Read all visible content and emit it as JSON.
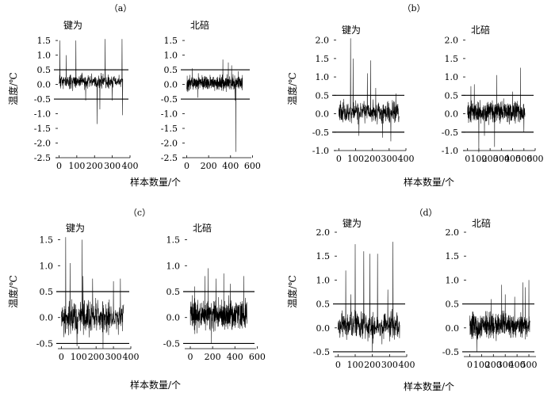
{
  "panels": [
    {
      "label": "（a）",
      "ylabel": "温度/℃",
      "xlabel": "样本数量/个"
    },
    {
      "label": "（b）",
      "ylabel": "温度/℃",
      "xlabel": "样本数量/个"
    },
    {
      "label": "（c）",
      "ylabel": "温度/℃",
      "xlabel": "样本数量/个"
    },
    {
      "label": "（d）",
      "ylabel": "温度/℃",
      "xlabel": "样本数量/个"
    }
  ],
  "chart_data": [
    {
      "panel": "（a）",
      "title": "键为",
      "type": "line",
      "xlim": [
        -20,
        400
      ],
      "ylim": [
        -2.5,
        1.8
      ],
      "xticks": [
        "0",
        "100",
        "200",
        "300",
        "400"
      ],
      "xtick_values": [
        0,
        100,
        200,
        300,
        400
      ],
      "yticks": [
        "-2.5",
        "-2.0",
        "-1.5",
        "-1.0",
        "-0.5",
        "0.0",
        "0.5",
        "1.0",
        "1.5"
      ],
      "ytick_values": [
        -2.5,
        -2.0,
        -1.5,
        -1.0,
        -0.5,
        0.0,
        0.5,
        1.0,
        1.5
      ],
      "thresholds": [
        0.5,
        -0.5
      ],
      "n": 360,
      "base": 0.1,
      "amp": 0.17,
      "seed": 11,
      "spikes": [
        [
          5,
          1.5
        ],
        [
          40,
          1.0
        ],
        [
          95,
          1.5
        ],
        [
          150,
          -0.55
        ],
        [
          215,
          -1.35
        ],
        [
          230,
          -0.85
        ],
        [
          260,
          1.55
        ],
        [
          300,
          -0.55
        ],
        [
          355,
          1.55
        ],
        [
          358,
          -1.05
        ]
      ]
    },
    {
      "panel": "（a）",
      "title": "北碚",
      "type": "line",
      "xlim": [
        -40,
        590
      ],
      "ylim": [
        -2.5,
        1.8
      ],
      "xticks": [
        "0",
        "200",
        "400",
        "600"
      ],
      "xtick_values": [
        0,
        200,
        400,
        600
      ],
      "yticks": [
        "-2.5",
        "-2.0",
        "-1.5",
        "-1.0",
        "-0.5",
        "0.0",
        "0.5",
        "1.0",
        "1.5"
      ],
      "ytick_values": [
        -2.5,
        -2.0,
        -1.5,
        -1.0,
        -0.5,
        0.0,
        0.5,
        1.0,
        1.5
      ],
      "thresholds": [
        0.5,
        -0.5
      ],
      "n": 510,
      "base": 0.05,
      "amp": 0.17,
      "seed": 22,
      "spikes": [
        [
          50,
          0.55
        ],
        [
          100,
          -0.45
        ],
        [
          330,
          0.85
        ],
        [
          380,
          0.75
        ],
        [
          410,
          0.65
        ],
        [
          440,
          -0.55
        ],
        [
          448,
          -2.3
        ],
        [
          470,
          0.45
        ]
      ]
    },
    {
      "panel": "（b）",
      "title": "键为",
      "type": "line",
      "xlim": [
        -30,
        400
      ],
      "ylim": [
        -1.0,
        2.1
      ],
      "xticks": [
        "0",
        "100",
        "200",
        "300",
        "400"
      ],
      "xtick_values": [
        0,
        100,
        200,
        300,
        400
      ],
      "yticks": [
        "-1.0",
        "-0.5",
        "0.0",
        "0.5",
        "1.0",
        "1.5",
        "2.0"
      ],
      "ytick_values": [
        -1.0,
        -0.5,
        0.0,
        0.5,
        1.0,
        1.5,
        2.0
      ],
      "thresholds": [
        0.5,
        -0.5
      ],
      "n": 360,
      "base": 0.05,
      "amp": 0.2,
      "seed": 33,
      "spikes": [
        [
          70,
          2.05
        ],
        [
          85,
          1.5
        ],
        [
          120,
          -0.6
        ],
        [
          170,
          1.1
        ],
        [
          190,
          1.45
        ],
        [
          220,
          0.7
        ],
        [
          260,
          -0.65
        ],
        [
          310,
          -0.75
        ],
        [
          340,
          0.55
        ]
      ]
    },
    {
      "panel": "（b）",
      "title": "北碚",
      "type": "line",
      "xlim": [
        -40,
        600
      ],
      "ylim": [
        -1.0,
        2.1
      ],
      "xticks": [
        "0",
        "100",
        "200",
        "300",
        "400",
        "500",
        "600"
      ],
      "xtick_values": [
        0,
        100,
        200,
        300,
        400,
        500,
        600
      ],
      "yticks": [
        "-1.0",
        "-0.5",
        "0.0",
        "0.5",
        "1.0",
        "1.5",
        "2.0"
      ],
      "ytick_values": [
        -1.0,
        -0.5,
        0.0,
        0.5,
        1.0,
        1.5,
        2.0
      ],
      "thresholds": [
        0.5,
        -0.5
      ],
      "n": 510,
      "base": 0.05,
      "amp": 0.2,
      "seed": 44,
      "spikes": [
        [
          30,
          0.75
        ],
        [
          60,
          0.8
        ],
        [
          100,
          -1.05
        ],
        [
          150,
          -0.6
        ],
        [
          240,
          -0.9
        ],
        [
          260,
          1.05
        ],
        [
          400,
          0.6
        ],
        [
          470,
          1.25
        ],
        [
          500,
          -0.5
        ]
      ]
    },
    {
      "panel": "（c）",
      "title": "键为",
      "type": "line",
      "xlim": [
        -20,
        400
      ],
      "ylim": [
        -0.6,
        1.6
      ],
      "xticks": [
        "0",
        "100",
        "200",
        "300",
        "400"
      ],
      "xtick_values": [
        0,
        100,
        200,
        300,
        400
      ],
      "yticks": [
        "-0.5",
        "0.0",
        "0.5",
        "1.0",
        "1.5"
      ],
      "ytick_values": [
        -0.5,
        0.0,
        0.5,
        1.0,
        1.5
      ],
      "thresholds": [
        0.5,
        -0.5
      ],
      "n": 360,
      "base": 0.0,
      "amp": 0.22,
      "seed": 55,
      "spikes": [
        [
          25,
          1.55
        ],
        [
          50,
          1.05
        ],
        [
          90,
          -0.55
        ],
        [
          120,
          1.5
        ],
        [
          125,
          0.8
        ],
        [
          180,
          0.75
        ],
        [
          240,
          -0.6
        ],
        [
          300,
          0.7
        ],
        [
          340,
          0.75
        ]
      ]
    },
    {
      "panel": "（c）",
      "title": "北碚",
      "type": "line",
      "xlim": [
        -50,
        590
      ],
      "ylim": [
        -0.6,
        1.6
      ],
      "xticks": [
        "0",
        "200",
        "400",
        "600"
      ],
      "xtick_values": [
        0,
        200,
        400,
        600
      ],
      "yticks": [
        "-0.5",
        "0.0",
        "0.5",
        "1.0",
        "1.5"
      ],
      "ytick_values": [
        -0.5,
        0.0,
        0.5,
        1.0,
        1.5
      ],
      "thresholds": [
        0.5,
        -0.5
      ],
      "n": 510,
      "base": 0.05,
      "amp": 0.2,
      "seed": 66,
      "spikes": [
        [
          40,
          0.6
        ],
        [
          130,
          0.8
        ],
        [
          160,
          0.95
        ],
        [
          190,
          -0.5
        ],
        [
          230,
          0.75
        ],
        [
          300,
          0.85
        ],
        [
          360,
          0.65
        ],
        [
          480,
          0.8
        ]
      ]
    },
    {
      "panel": "（d）",
      "title": "键为",
      "type": "line",
      "xlim": [
        -20,
        400
      ],
      "ylim": [
        -0.6,
        2.05
      ],
      "xticks": [
        "0",
        "100",
        "200",
        "300",
        "400"
      ],
      "xtick_values": [
        0,
        100,
        200,
        300,
        400
      ],
      "yticks": [
        "-0.5",
        "0.0",
        "0.5",
        "1.0",
        "1.5",
        "2.0"
      ],
      "ytick_values": [
        -0.5,
        0.0,
        0.5,
        1.0,
        1.5,
        2.0
      ],
      "thresholds": [
        0.5,
        -0.5
      ],
      "n": 360,
      "base": 0.05,
      "amp": 0.2,
      "seed": 77,
      "spikes": [
        [
          45,
          1.2
        ],
        [
          75,
          0.7
        ],
        [
          100,
          1.75
        ],
        [
          150,
          1.6
        ],
        [
          185,
          1.55
        ],
        [
          200,
          -0.5
        ],
        [
          230,
          1.55
        ],
        [
          290,
          0.8
        ],
        [
          320,
          1.8
        ]
      ]
    },
    {
      "panel": "（d）",
      "title": "北碚",
      "type": "line",
      "xlim": [
        -50,
        560
      ],
      "ylim": [
        -0.6,
        2.05
      ],
      "xticks": [
        "0",
        "100",
        "200",
        "300",
        "400",
        "500"
      ],
      "xtick_values": [
        0,
        100,
        200,
        300,
        400,
        500
      ],
      "yticks": [
        "-0.5",
        "0.0",
        "0.5",
        "1.0",
        "1.5",
        "2.0"
      ],
      "ytick_values": [
        -0.5,
        0.0,
        0.5,
        1.0,
        1.5,
        2.0
      ],
      "thresholds": [
        0.5,
        -0.5
      ],
      "n": 510,
      "base": 0.05,
      "amp": 0.18,
      "seed": 88,
      "spikes": [
        [
          60,
          -0.5
        ],
        [
          180,
          0.6
        ],
        [
          270,
          0.9
        ],
        [
          300,
          0.7
        ],
        [
          380,
          0.65
        ],
        [
          450,
          0.95
        ],
        [
          470,
          0.85
        ],
        [
          500,
          1.0
        ]
      ]
    }
  ]
}
